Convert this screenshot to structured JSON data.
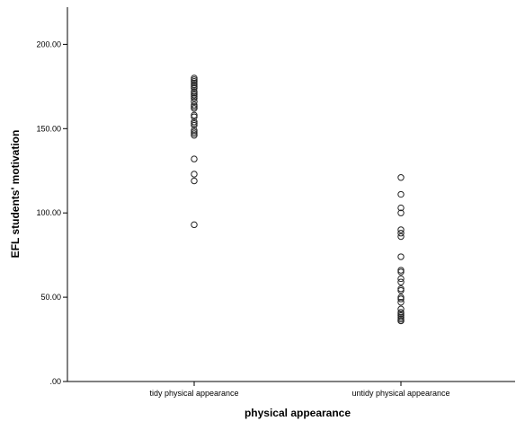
{
  "chart_data": {
    "type": "scatter",
    "xlabel": "physical appearance",
    "ylabel": "EFL students' motivation",
    "categories": [
      "tidy physical appearance",
      "untidy physical appearance"
    ],
    "ylim": [
      0,
      220
    ],
    "yticks": [
      {
        "value": 0,
        "label": ".00"
      },
      {
        "value": 50,
        "label": "50.00"
      },
      {
        "value": 100,
        "label": "100.00"
      },
      {
        "value": 150,
        "label": "150.00"
      },
      {
        "value": 200,
        "label": "200.00"
      }
    ],
    "grid": false,
    "series": [
      {
        "category": "tidy physical appearance",
        "values": [
          180,
          179,
          178,
          177,
          176,
          175,
          174,
          172,
          171,
          170,
          169,
          168,
          166,
          164,
          163,
          162,
          158,
          157,
          154,
          153,
          152,
          149,
          148,
          147,
          146,
          132,
          123,
          119,
          93
        ]
      },
      {
        "category": "untidy physical appearance",
        "values": [
          121,
          111,
          103,
          100,
          90,
          88,
          86,
          74,
          66,
          65,
          61,
          59,
          55,
          54,
          50,
          49,
          47,
          43,
          41,
          40,
          39,
          38,
          37,
          36,
          36
        ]
      }
    ],
    "marker": "open-circle",
    "marker_color": "#222222"
  }
}
